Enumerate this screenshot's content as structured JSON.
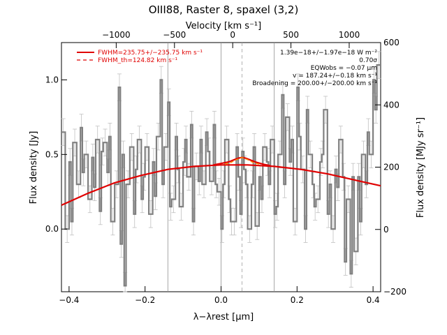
{
  "chart_data": {
    "type": "line",
    "title": "OIII88, Raster 8, spaxel (3,2)",
    "xlabel": "λ−λrest [μm]",
    "ylabel": "Flux density [Jy]",
    "y2label": "Flux density [MJy sr⁻¹]",
    "x2label": "Velocity [km s⁻¹]",
    "xlim": [
      -0.42,
      0.42
    ],
    "ylim": [
      -0.42,
      1.25
    ],
    "y2lim": [
      -200,
      600
    ],
    "x2lim": [
      -1470,
      1270
    ],
    "x_ticks": [
      "−0.4",
      "−0.2",
      "0.0",
      "0.2",
      "0.4"
    ],
    "y_ticks": [
      "0.0",
      "0.5",
      "1.0"
    ],
    "y2_ticks": [
      "−200",
      "0",
      "200",
      "400",
      "600"
    ],
    "x2_ticks": [
      "−1000",
      "−500",
      "0",
      "500",
      "1000"
    ],
    "vertical_lines": [
      -0.14,
      0.0,
      0.14
    ],
    "dashed_line_x": 0.055,
    "legend": {
      "placement": "top-left",
      "entries": [
        {
          "label": "FWHM=235.75+/−235.75 km s⁻¹",
          "style": "solid",
          "color": "#e00000"
        },
        {
          "label": "FWHM_th=124.82 km s⁻¹",
          "style": "dashed",
          "color": "#e00000"
        }
      ]
    },
    "annotations": [
      "1.39e−18+/−1.97e−18 W m⁻²",
      "0.70σ",
      "EQWobs = −0.07 μm",
      "v = 187.24+/−0.18 km s⁻¹",
      "Broadening = 200.00+/−200.00 km s⁻¹"
    ],
    "series": [
      {
        "role": "data",
        "color": "#808080",
        "style": "histogram",
        "x": [
          -0.42,
          -0.41,
          -0.4,
          -0.395,
          -0.39,
          -0.38,
          -0.37,
          -0.365,
          -0.36,
          -0.35,
          -0.34,
          -0.335,
          -0.33,
          -0.32,
          -0.315,
          -0.31,
          -0.3,
          -0.295,
          -0.29,
          -0.28,
          -0.27,
          -0.265,
          -0.26,
          -0.255,
          -0.25,
          -0.24,
          -0.23,
          -0.225,
          -0.22,
          -0.21,
          -0.205,
          -0.2,
          -0.19,
          -0.18,
          -0.175,
          -0.17,
          -0.16,
          -0.155,
          -0.15,
          -0.14,
          -0.135,
          -0.13,
          -0.12,
          -0.115,
          -0.11,
          -0.1,
          -0.095,
          -0.09,
          -0.08,
          -0.075,
          -0.07,
          -0.06,
          -0.055,
          -0.05,
          -0.04,
          -0.035,
          -0.03,
          -0.02,
          -0.015,
          -0.01,
          0.0,
          0.005,
          0.01,
          0.02,
          0.025,
          0.03,
          0.04,
          0.045,
          0.05,
          0.055,
          0.06,
          0.065,
          0.07,
          0.08,
          0.085,
          0.09,
          0.1,
          0.105,
          0.11,
          0.12,
          0.125,
          0.13,
          0.14,
          0.145,
          0.15,
          0.16,
          0.165,
          0.17,
          0.18,
          0.185,
          0.19,
          0.2,
          0.205,
          0.21,
          0.22,
          0.225,
          0.23,
          0.24,
          0.245,
          0.25,
          0.26,
          0.265,
          0.27,
          0.28,
          0.285,
          0.29,
          0.3,
          0.305,
          0.31,
          0.32,
          0.325,
          0.33,
          0.34,
          0.345,
          0.35,
          0.36,
          0.365,
          0.37,
          0.38,
          0.385,
          0.39,
          0.4,
          0.405,
          0.41
        ],
        "y": [
          0.65,
          0.0,
          0.45,
          0.05,
          0.58,
          0.3,
          0.68,
          0.38,
          0.5,
          0.2,
          0.48,
          0.28,
          0.6,
          0.12,
          0.52,
          0.58,
          0.38,
          0.62,
          0.05,
          0.3,
          0.95,
          -0.1,
          0.5,
          -0.38,
          0.3,
          0.55,
          0.1,
          0.4,
          0.6,
          0.2,
          0.35,
          0.55,
          0.1,
          0.45,
          0.22,
          0.62,
          1.0,
          0.3,
          0.55,
          0.85,
          0.15,
          0.2,
          0.62,
          0.4,
          0.15,
          0.45,
          0.6,
          0.35,
          0.7,
          0.05,
          0.42,
          0.32,
          0.6,
          0.3,
          0.65,
          0.52,
          0.32,
          0.7,
          0.3,
          0.25,
          0.0,
          0.3,
          0.6,
          0.2,
          0.05,
          0.05,
          0.55,
          0.35,
          0.1,
          0.52,
          0.4,
          0.3,
          0.0,
          0.3,
          0.55,
          0.02,
          0.35,
          0.2,
          0.55,
          0.45,
          0.3,
          0.6,
          0.1,
          0.15,
          0.5,
          0.9,
          0.3,
          0.75,
          0.45,
          0.6,
          0.05,
          0.95,
          0.62,
          0.4,
          0.0,
          0.8,
          0.5,
          0.3,
          0.15,
          0.2,
          0.45,
          0.5,
          0.8,
          0.1,
          0.3,
          0.0,
          0.4,
          0.28,
          0.6,
          0.35,
          -0.22,
          0.2,
          -0.3,
          0.35,
          -0.15,
          0.35,
          0.05,
          0.5,
          0.3,
          0.65,
          0.5,
          1.0,
          0.8,
          1.1
        ]
      },
      {
        "role": "fit-continuum",
        "color": "#e00000",
        "style": "solid",
        "x": [
          -0.42,
          -0.35,
          -0.28,
          -0.21,
          -0.14,
          -0.07,
          0.0,
          0.07,
          0.14,
          0.21,
          0.28,
          0.35,
          0.42
        ],
        "y": [
          0.16,
          0.24,
          0.31,
          0.36,
          0.4,
          0.42,
          0.43,
          0.43,
          0.42,
          0.4,
          0.37,
          0.33,
          0.29
        ]
      },
      {
        "role": "fit-line",
        "color": "#e00000",
        "style": "solid",
        "x": [
          -0.02,
          0.0,
          0.02,
          0.035,
          0.045,
          0.055,
          0.065,
          0.075,
          0.09,
          0.11,
          0.13
        ],
        "y": [
          0.43,
          0.44,
          0.45,
          0.465,
          0.475,
          0.48,
          0.475,
          0.465,
          0.45,
          0.435,
          0.425
        ]
      },
      {
        "role": "fit-line-thermal",
        "color": "#ff8c00",
        "style": "dashed",
        "x": [
          0.01,
          0.025,
          0.04,
          0.05,
          0.055,
          0.06,
          0.07,
          0.085,
          0.1
        ],
        "y": [
          0.435,
          0.445,
          0.465,
          0.475,
          0.48,
          0.475,
          0.465,
          0.445,
          0.435
        ]
      }
    ]
  }
}
